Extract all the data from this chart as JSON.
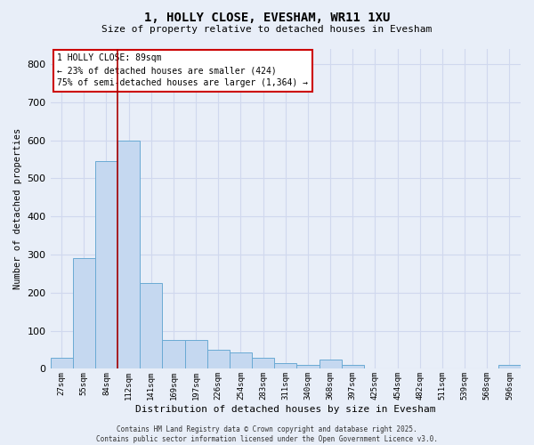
{
  "title": "1, HOLLY CLOSE, EVESHAM, WR11 1XU",
  "subtitle": "Size of property relative to detached houses in Evesham",
  "xlabel": "Distribution of detached houses by size in Evesham",
  "ylabel": "Number of detached properties",
  "footer_line1": "Contains HM Land Registry data © Crown copyright and database right 2025.",
  "footer_line2": "Contains public sector information licensed under the Open Government Licence v3.0.",
  "categories": [
    "27sqm",
    "55sqm",
    "84sqm",
    "112sqm",
    "141sqm",
    "169sqm",
    "197sqm",
    "226sqm",
    "254sqm",
    "283sqm",
    "311sqm",
    "340sqm",
    "368sqm",
    "397sqm",
    "425sqm",
    "454sqm",
    "482sqm",
    "511sqm",
    "539sqm",
    "568sqm",
    "596sqm"
  ],
  "values": [
    30,
    290,
    545,
    600,
    225,
    75,
    75,
    50,
    42,
    30,
    15,
    10,
    25,
    10,
    0,
    0,
    0,
    0,
    0,
    0,
    10
  ],
  "bar_color": "#c5d8f0",
  "bar_edge_color": "#6aaad4",
  "background_color": "#e8eef8",
  "grid_color": "#d0d8ee",
  "annotation_text": "1 HOLLY CLOSE: 89sqm\n← 23% of detached houses are smaller (424)\n75% of semi-detached houses are larger (1,364) →",
  "annotation_box_color": "#ffffff",
  "annotation_box_edge": "#cc0000",
  "vline_color": "#aa0000",
  "vline_pos": 2.5,
  "ylim": [
    0,
    840
  ],
  "yticks": [
    0,
    100,
    200,
    300,
    400,
    500,
    600,
    700,
    800
  ]
}
